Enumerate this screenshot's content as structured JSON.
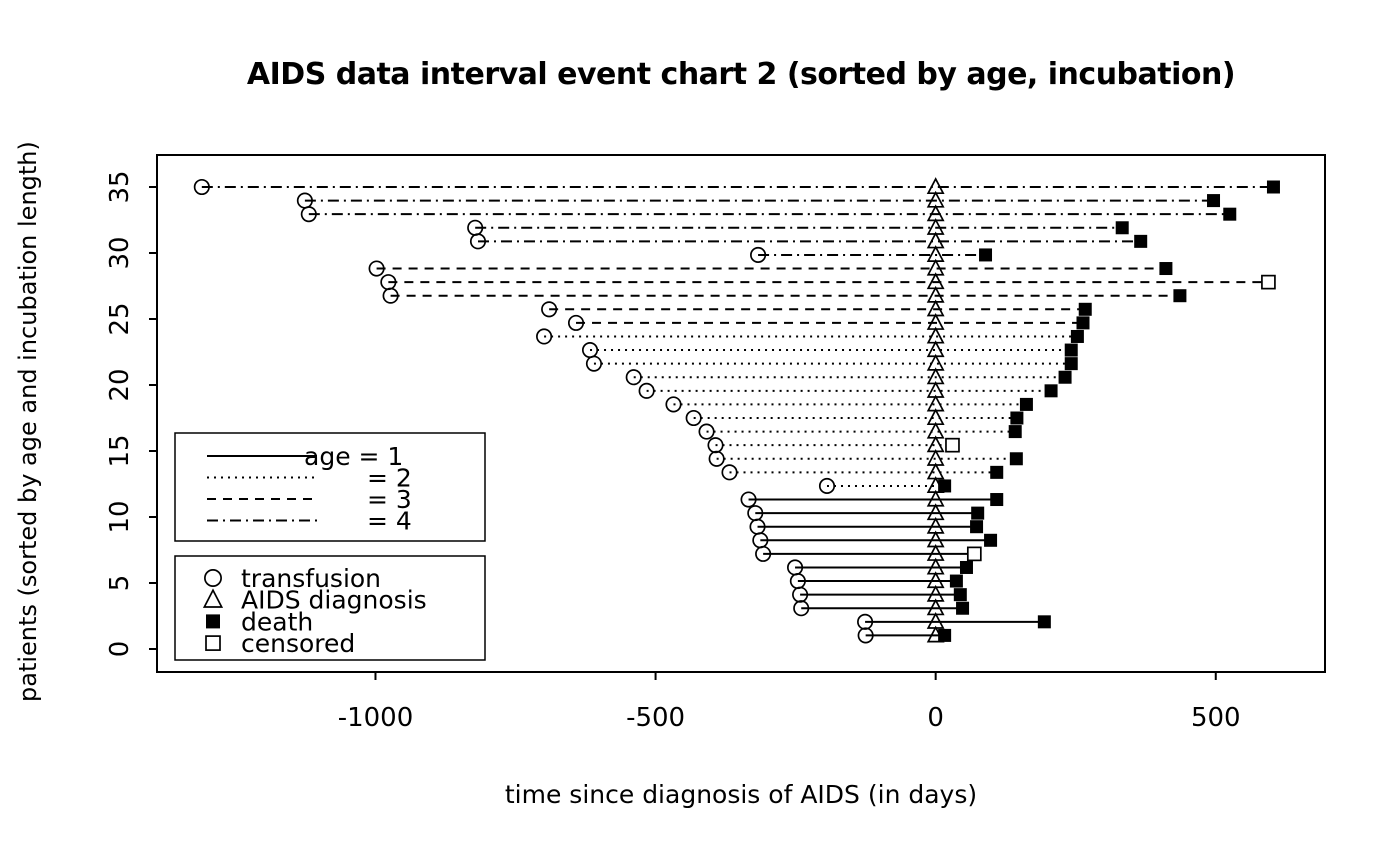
{
  "title": "AIDS data interval event chart 2 (sorted by age, incubation)",
  "colors": {
    "foreground": "#000000",
    "background": "#ffffff"
  },
  "chart_data": {
    "type": "line",
    "subtype": "interval event chart (event timeline per patient)",
    "title": "AIDS data interval event chart 2 (sorted by age, incubation)",
    "xlabel": "time since diagnosis of AIDS (in days)",
    "ylabel": "patients (sorted by age and incubation length)",
    "xlim": [
      -1390,
      695
    ],
    "ylim": [
      0,
      35.5
    ],
    "x_ticks": [
      -1000,
      -500,
      0,
      500
    ],
    "y_ticks": [
      0,
      5,
      10,
      15,
      20,
      25,
      30,
      35
    ],
    "grid": false,
    "legend_line_styles": {
      "position": "middle-left inside plot",
      "entries": [
        {
          "style": "solid",
          "label": "age = 1"
        },
        {
          "style": "dotted",
          "label": "= 2"
        },
        {
          "style": "dashed",
          "label": "= 3"
        },
        {
          "style": "dashdot",
          "label": "= 4"
        }
      ]
    },
    "legend_markers": {
      "position": "lower-left inside plot",
      "entries": [
        {
          "marker": "circle-open",
          "label": "transfusion"
        },
        {
          "marker": "triangle-open",
          "label": "AIDS diagnosis"
        },
        {
          "marker": "square-filled",
          "label": "death"
        },
        {
          "marker": "square-open",
          "label": "censored"
        }
      ]
    },
    "age_group_line_styles": {
      "1": "solid",
      "2": "dotted",
      "3": "dashed",
      "4": "dashdot"
    },
    "patients": [
      {
        "patient": 1,
        "age_group": 1,
        "line_style": "solid",
        "transfusion_day": -125,
        "aids_diagnosis_day": 0,
        "end_day": 16,
        "end_event": "death"
      },
      {
        "patient": 2,
        "age_group": 1,
        "line_style": "solid",
        "transfusion_day": -126,
        "aids_diagnosis_day": 0,
        "end_day": 194,
        "end_event": "death"
      },
      {
        "patient": 3,
        "age_group": 1,
        "line_style": "solid",
        "transfusion_day": -240,
        "aids_diagnosis_day": 0,
        "end_day": 48,
        "end_event": "death"
      },
      {
        "patient": 4,
        "age_group": 1,
        "line_style": "solid",
        "transfusion_day": -242,
        "aids_diagnosis_day": 0,
        "end_day": 44,
        "end_event": "death"
      },
      {
        "patient": 5,
        "age_group": 1,
        "line_style": "solid",
        "transfusion_day": -246,
        "aids_diagnosis_day": 0,
        "end_day": 37,
        "end_event": "death"
      },
      {
        "patient": 6,
        "age_group": 1,
        "line_style": "solid",
        "transfusion_day": -251,
        "aids_diagnosis_day": 0,
        "end_day": 55,
        "end_event": "death"
      },
      {
        "patient": 7,
        "age_group": 1,
        "line_style": "solid",
        "transfusion_day": -308,
        "aids_diagnosis_day": 0,
        "end_day": 69,
        "end_event": "censored"
      },
      {
        "patient": 8,
        "age_group": 1,
        "line_style": "solid",
        "transfusion_day": -313,
        "aids_diagnosis_day": 0,
        "end_day": 98,
        "end_event": "death"
      },
      {
        "patient": 9,
        "age_group": 1,
        "line_style": "solid",
        "transfusion_day": -318,
        "aids_diagnosis_day": 0,
        "end_day": 73,
        "end_event": "death"
      },
      {
        "patient": 10,
        "age_group": 1,
        "line_style": "solid",
        "transfusion_day": -322,
        "aids_diagnosis_day": 0,
        "end_day": 75,
        "end_event": "death"
      },
      {
        "patient": 11,
        "age_group": 1,
        "line_style": "solid",
        "transfusion_day": -334,
        "aids_diagnosis_day": 0,
        "end_day": 109,
        "end_event": "death"
      },
      {
        "patient": 12,
        "age_group": 2,
        "line_style": "dotted",
        "transfusion_day": -194,
        "aids_diagnosis_day": 0,
        "end_day": 16,
        "end_event": "death"
      },
      {
        "patient": 13,
        "age_group": 2,
        "line_style": "dotted",
        "transfusion_day": -368,
        "aids_diagnosis_day": 0,
        "end_day": 109,
        "end_event": "death"
      },
      {
        "patient": 14,
        "age_group": 2,
        "line_style": "dotted",
        "transfusion_day": -391,
        "aids_diagnosis_day": 0,
        "end_day": 144,
        "end_event": "death"
      },
      {
        "patient": 15,
        "age_group": 2,
        "line_style": "dotted",
        "transfusion_day": -393,
        "aids_diagnosis_day": 0,
        "end_day": 30,
        "end_event": "censored"
      },
      {
        "patient": 16,
        "age_group": 2,
        "line_style": "dotted",
        "transfusion_day": -409,
        "aids_diagnosis_day": 0,
        "end_day": 142,
        "end_event": "death"
      },
      {
        "patient": 17,
        "age_group": 2,
        "line_style": "dotted",
        "transfusion_day": -432,
        "aids_diagnosis_day": 0,
        "end_day": 145,
        "end_event": "death"
      },
      {
        "patient": 18,
        "age_group": 2,
        "line_style": "dotted",
        "transfusion_day": -468,
        "aids_diagnosis_day": 0,
        "end_day": 162,
        "end_event": "death"
      },
      {
        "patient": 19,
        "age_group": 2,
        "line_style": "dotted",
        "transfusion_day": -516,
        "aids_diagnosis_day": 0,
        "end_day": 206,
        "end_event": "death"
      },
      {
        "patient": 20,
        "age_group": 2,
        "line_style": "dotted",
        "transfusion_day": -539,
        "aids_diagnosis_day": 0,
        "end_day": 231,
        "end_event": "death"
      },
      {
        "patient": 21,
        "age_group": 2,
        "line_style": "dotted",
        "transfusion_day": -610,
        "aids_diagnosis_day": 0,
        "end_day": 242,
        "end_event": "death"
      },
      {
        "patient": 22,
        "age_group": 2,
        "line_style": "dotted",
        "transfusion_day": -617,
        "aids_diagnosis_day": 0,
        "end_day": 242,
        "end_event": "death"
      },
      {
        "patient": 23,
        "age_group": 2,
        "line_style": "dotted",
        "transfusion_day": -699,
        "aids_diagnosis_day": 0,
        "end_day": 253,
        "end_event": "death"
      },
      {
        "patient": 24,
        "age_group": 3,
        "line_style": "dashed",
        "transfusion_day": -642,
        "aids_diagnosis_day": 0,
        "end_day": 263,
        "end_event": "death"
      },
      {
        "patient": 25,
        "age_group": 3,
        "line_style": "dashed",
        "transfusion_day": -690,
        "aids_diagnosis_day": 0,
        "end_day": 267,
        "end_event": "death"
      },
      {
        "patient": 26,
        "age_group": 3,
        "line_style": "dashed",
        "transfusion_day": -973,
        "aids_diagnosis_day": 0,
        "end_day": 436,
        "end_event": "death"
      },
      {
        "patient": 27,
        "age_group": 3,
        "line_style": "dashed",
        "transfusion_day": -977,
        "aids_diagnosis_day": 0,
        "end_day": 594,
        "end_event": "censored"
      },
      {
        "patient": 28,
        "age_group": 3,
        "line_style": "dashed",
        "transfusion_day": -998,
        "aids_diagnosis_day": 0,
        "end_day": 411,
        "end_event": "death"
      },
      {
        "patient": 29,
        "age_group": 4,
        "line_style": "dashdot",
        "transfusion_day": -317,
        "aids_diagnosis_day": 0,
        "end_day": 89,
        "end_event": "death"
      },
      {
        "patient": 30,
        "age_group": 4,
        "line_style": "dashdot",
        "transfusion_day": -817,
        "aids_diagnosis_day": 0,
        "end_day": 366,
        "end_event": "death"
      },
      {
        "patient": 31,
        "age_group": 4,
        "line_style": "dashdot",
        "transfusion_day": -822,
        "aids_diagnosis_day": 0,
        "end_day": 333,
        "end_event": "death"
      },
      {
        "patient": 32,
        "age_group": 4,
        "line_style": "dashdot",
        "transfusion_day": -1119,
        "aids_diagnosis_day": 0,
        "end_day": 525,
        "end_event": "death"
      },
      {
        "patient": 33,
        "age_group": 4,
        "line_style": "dashdot",
        "transfusion_day": -1126,
        "aids_diagnosis_day": 0,
        "end_day": 496,
        "end_event": "death"
      },
      {
        "patient": 34,
        "age_group": 4,
        "line_style": "dashdot",
        "transfusion_day": -1310,
        "aids_diagnosis_day": 0,
        "end_day": 603,
        "end_event": "death"
      }
    ]
  }
}
